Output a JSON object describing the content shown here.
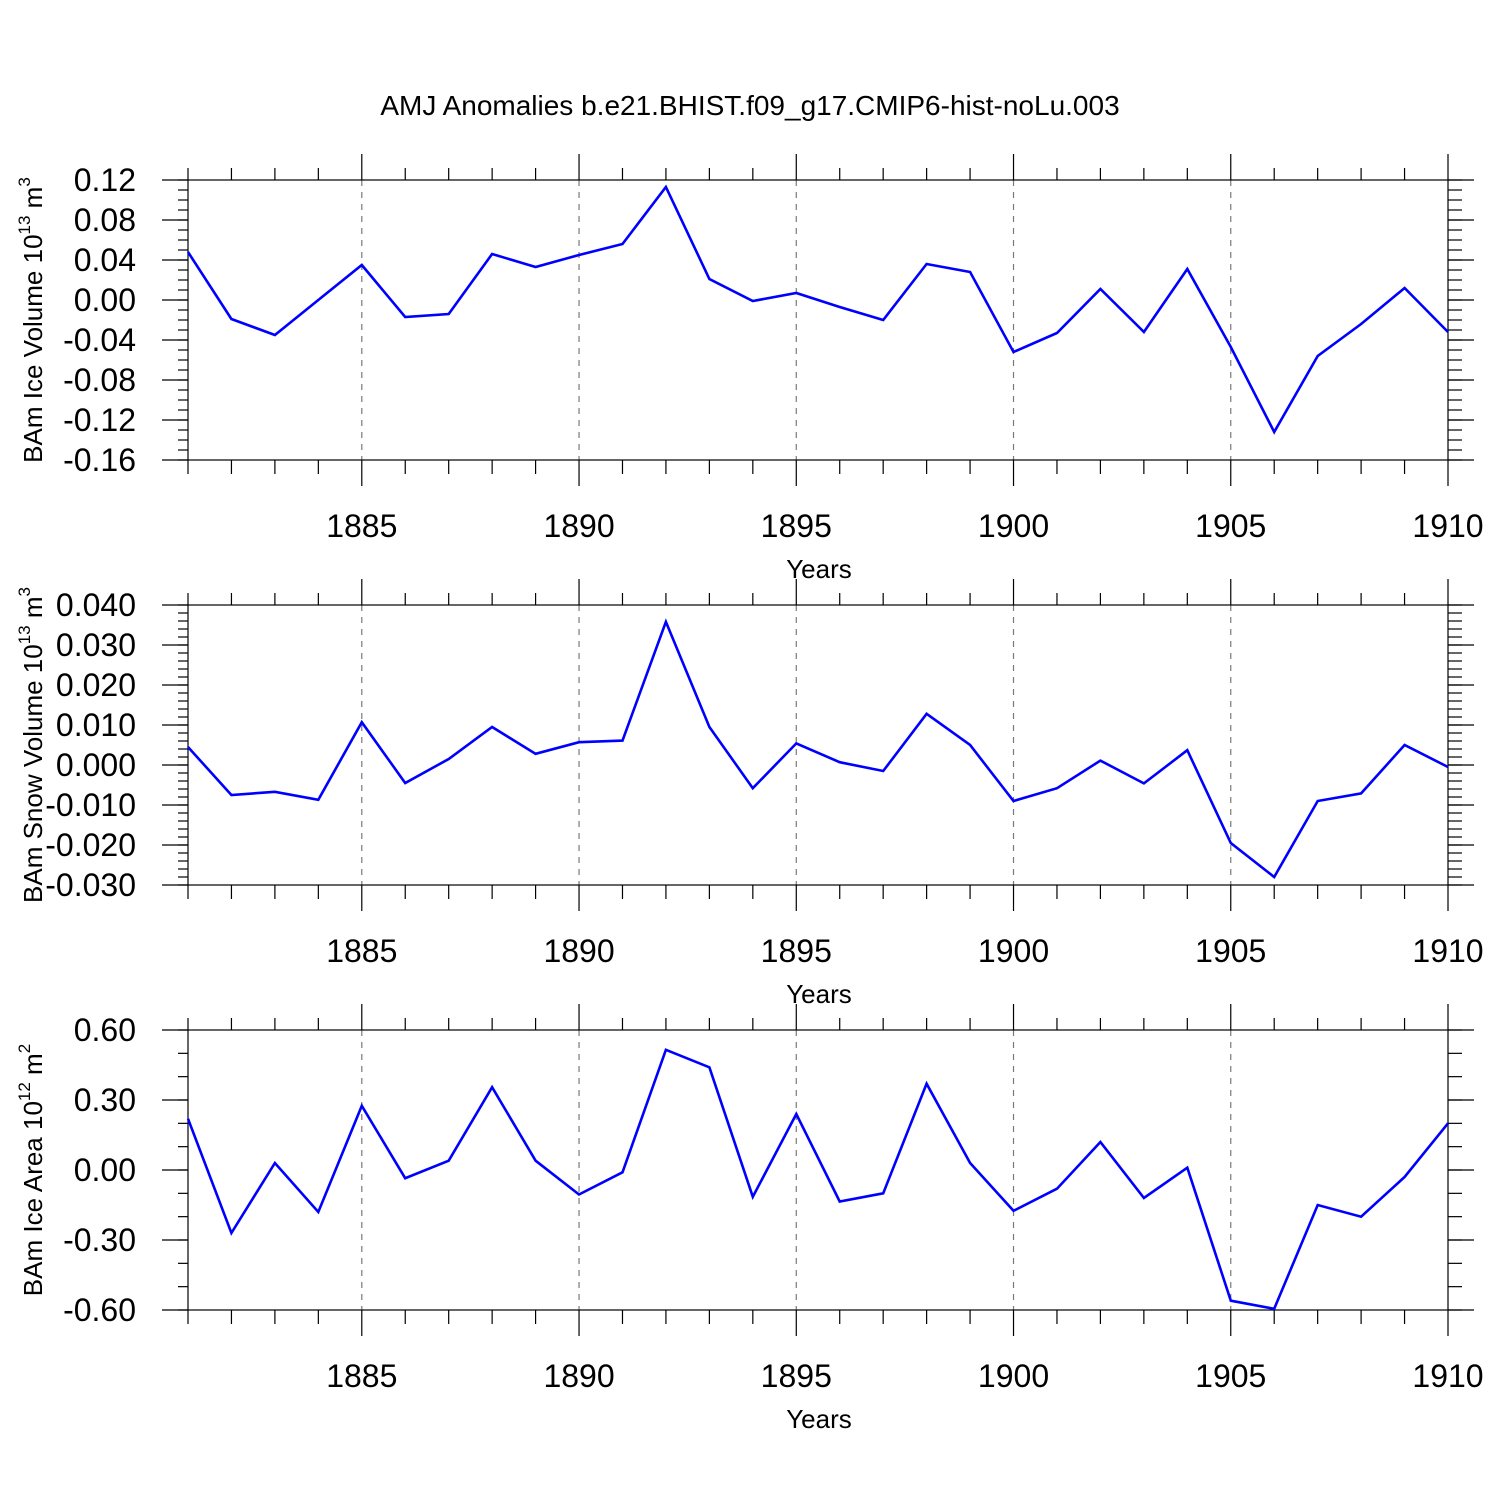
{
  "title": "AMJ Anomalies b.e21.BHIST.f09_g17.CMIP6-hist-noLu.003",
  "series_color": "#0000ff",
  "chart_data": [
    {
      "type": "line",
      "ylabel": "BAm Ice Volume 10",
      "ylabel_sup": "13",
      "ylabel_unit": " m",
      "ylabel_unit_sup": "3",
      "xlabel": "Years",
      "xlim": [
        1881,
        1910
      ],
      "ylim": [
        -0.16,
        0.12
      ],
      "yticks": [
        -0.16,
        -0.12,
        -0.08,
        -0.04,
        0.0,
        0.04,
        0.08,
        0.12
      ],
      "yticklabels": [
        "-0.16",
        "-0.12",
        "-0.08",
        "-0.04",
        "0.00",
        "0.04",
        "0.08",
        "0.12"
      ],
      "yminor_step": 0.01,
      "xticks": [
        1885,
        1890,
        1895,
        1900,
        1905,
        1910
      ],
      "xticklabels": [
        "1885",
        "1890",
        "1895",
        "1900",
        "1905",
        "1910"
      ],
      "grid": "vertical dashed at major x ticks",
      "x": [
        1881,
        1882,
        1883,
        1884,
        1885,
        1886,
        1887,
        1888,
        1889,
        1890,
        1891,
        1892,
        1893,
        1894,
        1895,
        1896,
        1897,
        1898,
        1899,
        1900,
        1901,
        1902,
        1903,
        1904,
        1905,
        1906,
        1907,
        1908,
        1909,
        1910
      ],
      "values": [
        0.048,
        -0.019,
        -0.035,
        0.0,
        0.035,
        -0.017,
        -0.014,
        0.046,
        0.033,
        0.045,
        0.056,
        0.113,
        0.021,
        -0.001,
        0.007,
        -0.007,
        -0.02,
        0.036,
        0.028,
        -0.052,
        -0.033,
        0.011,
        -0.032,
        0.031,
        -0.047,
        -0.132,
        -0.056,
        -0.024,
        0.012,
        -0.032
      ]
    },
    {
      "type": "line",
      "ylabel": "BAm Snow Volume 10",
      "ylabel_sup": "13",
      "ylabel_unit": " m",
      "ylabel_unit_sup": "3",
      "xlabel": "Years",
      "xlim": [
        1881,
        1910
      ],
      "ylim": [
        -0.03,
        0.04
      ],
      "yticks": [
        -0.03,
        -0.02,
        -0.01,
        0.0,
        0.01,
        0.02,
        0.03,
        0.04
      ],
      "yticklabels": [
        "-0.030",
        "-0.020",
        "-0.010",
        "0.000",
        "0.010",
        "0.020",
        "0.030",
        "0.040"
      ],
      "yminor_step": 0.002,
      "xticks": [
        1885,
        1890,
        1895,
        1900,
        1905,
        1910
      ],
      "xticklabels": [
        "1885",
        "1890",
        "1895",
        "1900",
        "1905",
        "1910"
      ],
      "grid": "vertical dashed at major x ticks",
      "x": [
        1881,
        1882,
        1883,
        1884,
        1885,
        1886,
        1887,
        1888,
        1889,
        1890,
        1891,
        1892,
        1893,
        1894,
        1895,
        1896,
        1897,
        1898,
        1899,
        1900,
        1901,
        1902,
        1903,
        1904,
        1905,
        1906,
        1907,
        1908,
        1909,
        1910
      ],
      "values": [
        0.0045,
        -0.0075,
        -0.0067,
        -0.0087,
        0.0107,
        -0.0045,
        0.0015,
        0.0095,
        0.0028,
        0.0057,
        0.0061,
        0.0358,
        0.0095,
        -0.0058,
        0.0054,
        0.0007,
        -0.0015,
        0.0128,
        0.005,
        -0.009,
        -0.0058,
        0.0011,
        -0.0046,
        0.0037,
        -0.0195,
        -0.028,
        -0.009,
        -0.0071,
        0.005,
        -0.0005
      ]
    },
    {
      "type": "line",
      "ylabel": "BAm Ice Area 10",
      "ylabel_sup": "12",
      "ylabel_unit": " m",
      "ylabel_unit_sup": "2",
      "xlabel": "Years",
      "xlim": [
        1881,
        1910
      ],
      "ylim": [
        -0.6,
        0.6
      ],
      "yticks": [
        -0.6,
        -0.3,
        0.0,
        0.3,
        0.6
      ],
      "yticklabels": [
        "-0.60",
        "-0.30",
        "0.00",
        "0.30",
        "0.60"
      ],
      "yminor_step": 0.1,
      "xticks": [
        1885,
        1890,
        1895,
        1900,
        1905,
        1910
      ],
      "xticklabels": [
        "1885",
        "1890",
        "1895",
        "1900",
        "1905",
        "1910"
      ],
      "grid": "vertical dashed at major x ticks",
      "x": [
        1881,
        1882,
        1883,
        1884,
        1885,
        1886,
        1887,
        1888,
        1889,
        1890,
        1891,
        1892,
        1893,
        1894,
        1895,
        1896,
        1897,
        1898,
        1899,
        1900,
        1901,
        1902,
        1903,
        1904,
        1905,
        1906,
        1907,
        1908,
        1909,
        1910
      ],
      "values": [
        0.22,
        -0.27,
        0.03,
        -0.18,
        0.275,
        -0.035,
        0.04,
        0.355,
        0.04,
        -0.105,
        -0.01,
        0.515,
        0.44,
        -0.115,
        0.24,
        -0.135,
        -0.1,
        0.37,
        0.03,
        -0.175,
        -0.08,
        0.12,
        -0.12,
        0.01,
        -0.56,
        -0.595,
        -0.15,
        -0.2,
        -0.03,
        0.2
      ]
    }
  ]
}
